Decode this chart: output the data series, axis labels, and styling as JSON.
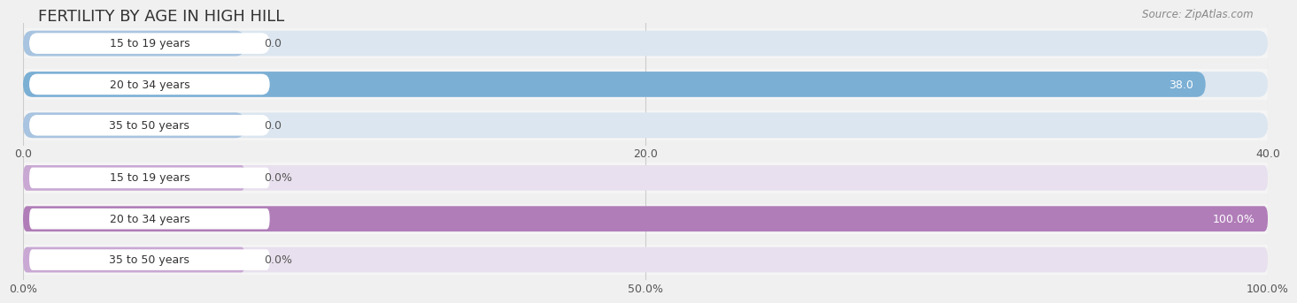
{
  "title": "FERTILITY BY AGE IN HIGH HILL",
  "source": "Source: ZipAtlas.com",
  "top_chart": {
    "categories": [
      "15 to 19 years",
      "20 to 34 years",
      "35 to 50 years"
    ],
    "values": [
      0.0,
      38.0,
      0.0
    ],
    "xlim": [
      0,
      40.0
    ],
    "xticks": [
      0.0,
      20.0,
      40.0
    ],
    "xtick_labels": [
      "0.0",
      "20.0",
      "40.0"
    ],
    "bar_color": "#7bafd4",
    "bar_bg_color": "#dce6f0",
    "stub_color": "#a8c4e0",
    "label_color_inside": "#ffffff",
    "label_color_outside": "#555555"
  },
  "bottom_chart": {
    "categories": [
      "15 to 19 years",
      "20 to 34 years",
      "35 to 50 years"
    ],
    "values": [
      0.0,
      100.0,
      0.0
    ],
    "xlim": [
      0,
      100.0
    ],
    "xticks": [
      0.0,
      50.0,
      100.0
    ],
    "xtick_labels": [
      "0.0%",
      "50.0%",
      "100.0%"
    ],
    "bar_color": "#b07db8",
    "bar_bg_color": "#e8e0ee",
    "stub_color": "#c9a8d4",
    "label_color_inside": "#ffffff",
    "label_color_outside": "#555555"
  },
  "bg_color": "#f0f0f0",
  "row_bg_color": "#f5f5f5",
  "white_label_box_color": "#ffffff",
  "title_fontsize": 13,
  "cat_fontsize": 9,
  "val_fontsize": 9,
  "tick_fontsize": 9,
  "source_fontsize": 8.5
}
